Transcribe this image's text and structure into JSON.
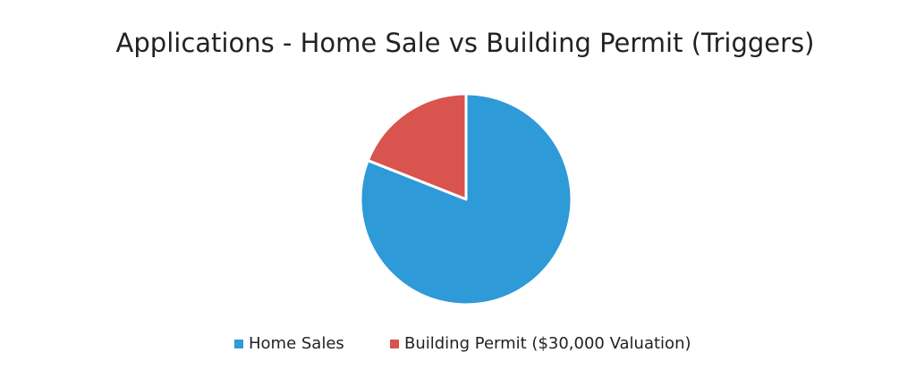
{
  "chart_data": {
    "type": "pie",
    "title": "Applications - Home Sale vs Building Permit (Triggers)",
    "categories": [
      "Home Sales",
      "Building Permit ($30,000 Valuation)"
    ],
    "values": [
      81,
      19
    ],
    "colors": [
      "#2e9ad8",
      "#d9534f"
    ],
    "legend": "bottom"
  }
}
